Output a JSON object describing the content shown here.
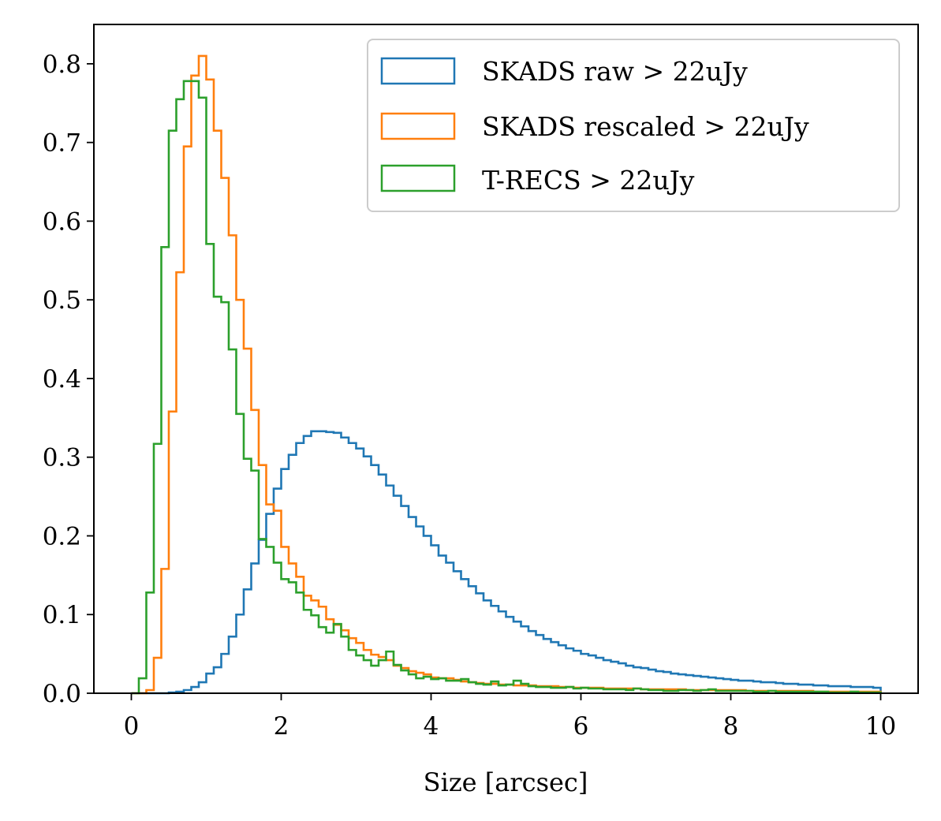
{
  "chart_data": {
    "type": "histogram",
    "title": "",
    "xlabel": "Size [arcsec]",
    "ylabel": "",
    "xlim": [
      -0.5,
      10.5
    ],
    "ylim": [
      0,
      0.85
    ],
    "xticks": [
      0,
      2,
      4,
      6,
      8,
      10
    ],
    "xtick_labels": [
      "0",
      "2",
      "4",
      "6",
      "8",
      "10"
    ],
    "yticks": [
      0.0,
      0.1,
      0.2,
      0.3,
      0.4,
      0.5,
      0.6,
      0.7,
      0.8
    ],
    "ytick_labels": [
      "0.0",
      "0.1",
      "0.2",
      "0.3",
      "0.4",
      "0.5",
      "0.6",
      "0.7",
      "0.8"
    ],
    "grid": false,
    "legend_position": "top-right",
    "bin_width": 0.1,
    "bin_start": 0,
    "series": [
      {
        "name": "SKADS raw > 22uJy",
        "color": "#1f77b4",
        "values": [
          0,
          0,
          0,
          0,
          0,
          0.001,
          0.002,
          0.004,
          0.008,
          0.014,
          0.025,
          0.033,
          0.05,
          0.072,
          0.1,
          0.132,
          0.165,
          0.195,
          0.228,
          0.26,
          0.285,
          0.303,
          0.318,
          0.327,
          0.333,
          0.333,
          0.332,
          0.331,
          0.325,
          0.318,
          0.311,
          0.301,
          0.29,
          0.278,
          0.264,
          0.251,
          0.238,
          0.224,
          0.212,
          0.2,
          0.188,
          0.175,
          0.166,
          0.155,
          0.145,
          0.136,
          0.127,
          0.118,
          0.111,
          0.104,
          0.097,
          0.091,
          0.085,
          0.079,
          0.074,
          0.069,
          0.065,
          0.061,
          0.057,
          0.054,
          0.05,
          0.048,
          0.045,
          0.042,
          0.04,
          0.038,
          0.035,
          0.033,
          0.032,
          0.03,
          0.028,
          0.027,
          0.025,
          0.024,
          0.023,
          0.022,
          0.021,
          0.02,
          0.019,
          0.018,
          0.017,
          0.016,
          0.016,
          0.015,
          0.014,
          0.014,
          0.013,
          0.012,
          0.012,
          0.011,
          0.011,
          0.01,
          0.01,
          0.009,
          0.009,
          0.009,
          0.008,
          0.008,
          0.008,
          0.007
        ]
      },
      {
        "name": "SKADS rescaled > 22uJy",
        "color": "#ff7f0e",
        "values": [
          0,
          0.0,
          0.004,
          0.045,
          0.158,
          0.358,
          0.535,
          0.695,
          0.785,
          0.81,
          0.78,
          0.715,
          0.655,
          0.582,
          0.5,
          0.438,
          0.36,
          0.29,
          0.24,
          0.232,
          0.186,
          0.165,
          0.148,
          0.124,
          0.118,
          0.11,
          0.094,
          0.087,
          0.08,
          0.07,
          0.064,
          0.055,
          0.049,
          0.046,
          0.042,
          0.035,
          0.032,
          0.028,
          0.026,
          0.024,
          0.02,
          0.019,
          0.019,
          0.017,
          0.015,
          0.014,
          0.013,
          0.012,
          0.012,
          0.011,
          0.011,
          0.01,
          0.01,
          0.01,
          0.009,
          0.009,
          0.009,
          0.008,
          0.008,
          0.007,
          0.007,
          0.007,
          0.007,
          0.006,
          0.006,
          0.006,
          0.006,
          0.006,
          0.005,
          0.005,
          0.005,
          0.005,
          0.005,
          0.005,
          0.004,
          0.004,
          0.004,
          0.004,
          0.004,
          0.004,
          0.004,
          0.004,
          0.003,
          0.003,
          0.003,
          0.003,
          0.003,
          0.003,
          0.003,
          0.003,
          0.003,
          0.002,
          0.002,
          0.002,
          0.002,
          0.002,
          0.002,
          0.002,
          0.002,
          0.002
        ]
      },
      {
        "name": "T-RECS > 22uJy",
        "color": "#2ca02c",
        "values": [
          0,
          0.019,
          0.128,
          0.317,
          0.567,
          0.715,
          0.755,
          0.778,
          0.778,
          0.757,
          0.571,
          0.504,
          0.497,
          0.437,
          0.355,
          0.298,
          0.283,
          0.196,
          0.186,
          0.166,
          0.145,
          0.141,
          0.128,
          0.106,
          0.099,
          0.084,
          0.077,
          0.088,
          0.072,
          0.055,
          0.048,
          0.042,
          0.035,
          0.042,
          0.053,
          0.036,
          0.029,
          0.024,
          0.019,
          0.021,
          0.018,
          0.019,
          0.016,
          0.016,
          0.018,
          0.014,
          0.012,
          0.011,
          0.015,
          0.01,
          0.011,
          0.016,
          0.012,
          0.009,
          0.008,
          0.008,
          0.007,
          0.007,
          0.008,
          0.006,
          0.007,
          0.006,
          0.006,
          0.005,
          0.005,
          0.005,
          0.004,
          0.006,
          0.005,
          0.004,
          0.004,
          0.003,
          0.003,
          0.004,
          0.004,
          0.003,
          0.004,
          0.005,
          0.003,
          0.003,
          0.003,
          0.003,
          0.003,
          0.002,
          0.002,
          0.003,
          0.002,
          0.002,
          0.002,
          0.002,
          0.002,
          0.002,
          0.002,
          0.001,
          0.001,
          0.001,
          0.002,
          0.001,
          0.001,
          0.001
        ]
      }
    ]
  }
}
